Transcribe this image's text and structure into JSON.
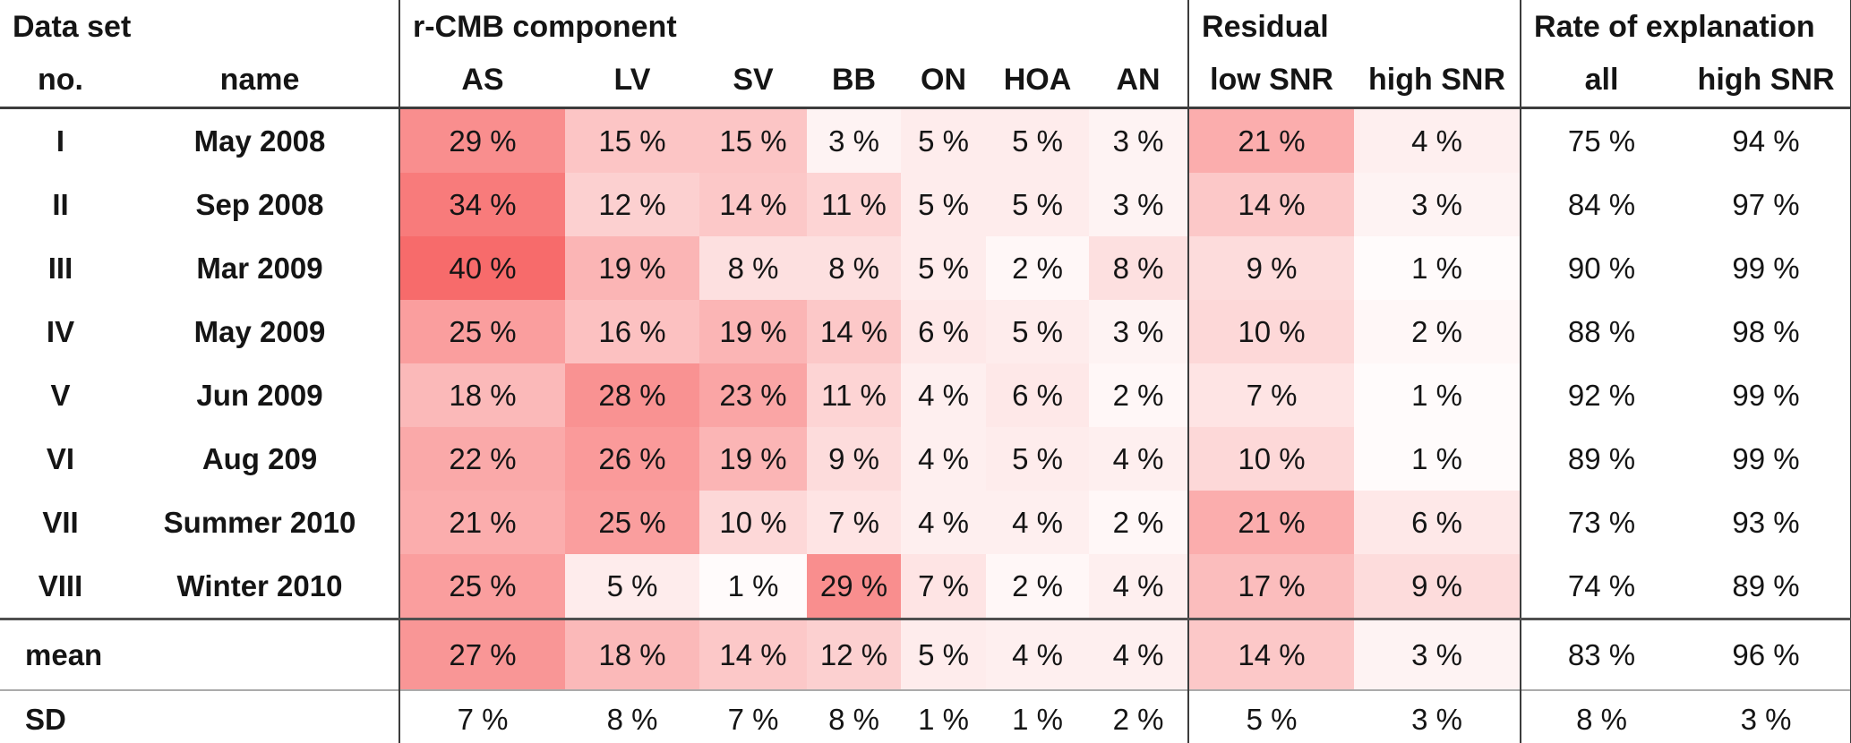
{
  "chart_data": {
    "type": "table",
    "description": "Heatmap table of r-CMB component contributions, residuals and rate of explanation per data set",
    "unit": "%",
    "value_format": "{v} %",
    "heatmap": {
      "zero_color": "#FFFFFF",
      "base_color": "#F76B6B",
      "scale_max_percent": 38,
      "applies_to_columns": [
        "AS",
        "LV",
        "SV",
        "BB",
        "ON",
        "HOA",
        "AN",
        "low SNR",
        "high SNR"
      ]
    },
    "sections": [
      {
        "title": "Data set",
        "columns": [
          "no.",
          "name"
        ]
      },
      {
        "title": "r-CMB component",
        "columns": [
          "AS",
          "LV",
          "SV",
          "BB",
          "ON",
          "HOA",
          "AN"
        ]
      },
      {
        "title": "Residual",
        "columns": [
          "low SNR",
          "high SNR"
        ]
      },
      {
        "title": "Rate of explanation",
        "columns": [
          "all",
          "high SNR"
        ]
      }
    ],
    "rows": [
      {
        "no": "I",
        "name": "May 2008",
        "values": [
          29,
          15,
          15,
          3,
          5,
          5,
          3,
          21,
          4,
          75,
          94
        ],
        "heatmap": true
      },
      {
        "no": "II",
        "name": "Sep 2008",
        "values": [
          34,
          12,
          14,
          11,
          5,
          5,
          3,
          14,
          3,
          84,
          97
        ],
        "heatmap": true
      },
      {
        "no": "III",
        "name": "Mar 2009",
        "values": [
          40,
          19,
          8,
          8,
          5,
          2,
          8,
          9,
          1,
          90,
          99
        ],
        "heatmap": true
      },
      {
        "no": "IV",
        "name": "May 2009",
        "values": [
          25,
          16,
          19,
          14,
          6,
          5,
          3,
          10,
          2,
          88,
          98
        ],
        "heatmap": true
      },
      {
        "no": "V",
        "name": "Jun 2009",
        "values": [
          18,
          28,
          23,
          11,
          4,
          6,
          2,
          7,
          1,
          92,
          99
        ],
        "heatmap": true
      },
      {
        "no": "VI",
        "name": "Aug 209",
        "values": [
          22,
          26,
          19,
          9,
          4,
          5,
          4,
          10,
          1,
          89,
          99
        ],
        "heatmap": true
      },
      {
        "no": "VII",
        "name": "Summer 2010",
        "values": [
          21,
          25,
          10,
          7,
          4,
          4,
          2,
          21,
          6,
          73,
          93
        ],
        "heatmap": true
      },
      {
        "no": "VIII",
        "name": "Winter 2010",
        "values": [
          25,
          5,
          1,
          29,
          7,
          2,
          4,
          17,
          9,
          74,
          89
        ],
        "heatmap": true
      }
    ],
    "summary_rows": [
      {
        "label": "mean",
        "values": [
          27,
          18,
          14,
          12,
          5,
          4,
          4,
          14,
          3,
          83,
          96
        ],
        "heatmap": true
      },
      {
        "label": "SD",
        "values": [
          7,
          8,
          7,
          8,
          1,
          1,
          2,
          5,
          3,
          8,
          3
        ],
        "heatmap": false
      }
    ]
  }
}
